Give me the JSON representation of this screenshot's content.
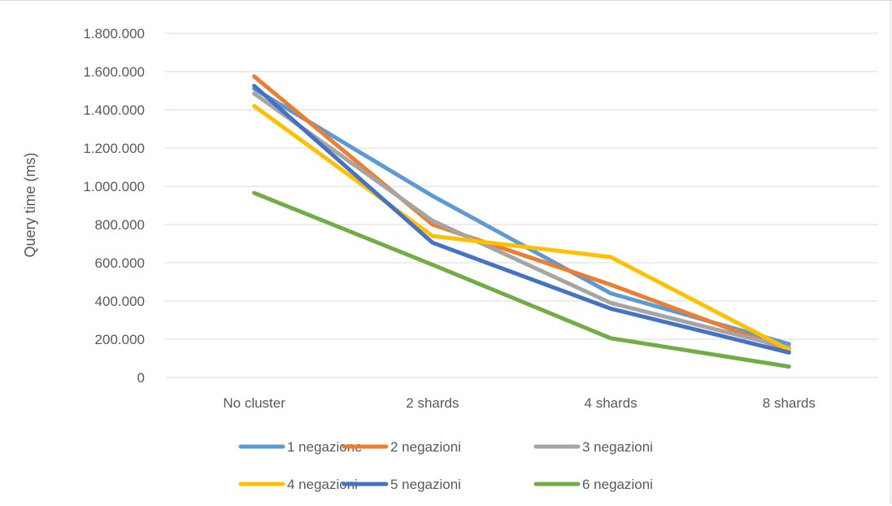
{
  "chart_data": {
    "type": "line",
    "title": "",
    "xlabel": "",
    "ylabel": "Query time (ms)",
    "categories": [
      "No cluster",
      "2 shards",
      "4 shards",
      "8 shards"
    ],
    "ylim": [
      0,
      1800000
    ],
    "yticks": [
      {
        "value": 0,
        "label": "0"
      },
      {
        "value": 200000,
        "label": "200.000"
      },
      {
        "value": 400000,
        "label": "400.000"
      },
      {
        "value": 600000,
        "label": "600.000"
      },
      {
        "value": 800000,
        "label": "800.000"
      },
      {
        "value": 1000000,
        "label": "1.000.000"
      },
      {
        "value": 1200000,
        "label": "1.200.000"
      },
      {
        "value": 1400000,
        "label": "1.400.000"
      },
      {
        "value": 1600000,
        "label": "1.600.000"
      },
      {
        "value": 1800000,
        "label": "1.800.000"
      }
    ],
    "grid": true,
    "legend_position": "bottom",
    "series": [
      {
        "name": "1 negazione",
        "color": "#5B9BD5",
        "values": [
          1510000,
          950000,
          440000,
          175000
        ]
      },
      {
        "name": "2 negazioni",
        "color": "#ED7D31",
        "values": [
          1575000,
          800000,
          485000,
          140000
        ]
      },
      {
        "name": "3 negazioni",
        "color": "#A5A5A5",
        "values": [
          1485000,
          820000,
          390000,
          155000
        ]
      },
      {
        "name": "4 negazioni",
        "color": "#FFC000",
        "values": [
          1420000,
          740000,
          630000,
          145000
        ]
      },
      {
        "name": "5 negazioni",
        "color": "#4472C4",
        "values": [
          1525000,
          705000,
          360000,
          130000
        ]
      },
      {
        "name": "6 negazioni",
        "color": "#70AD47",
        "values": [
          965000,
          590000,
          205000,
          57000
        ]
      }
    ]
  }
}
